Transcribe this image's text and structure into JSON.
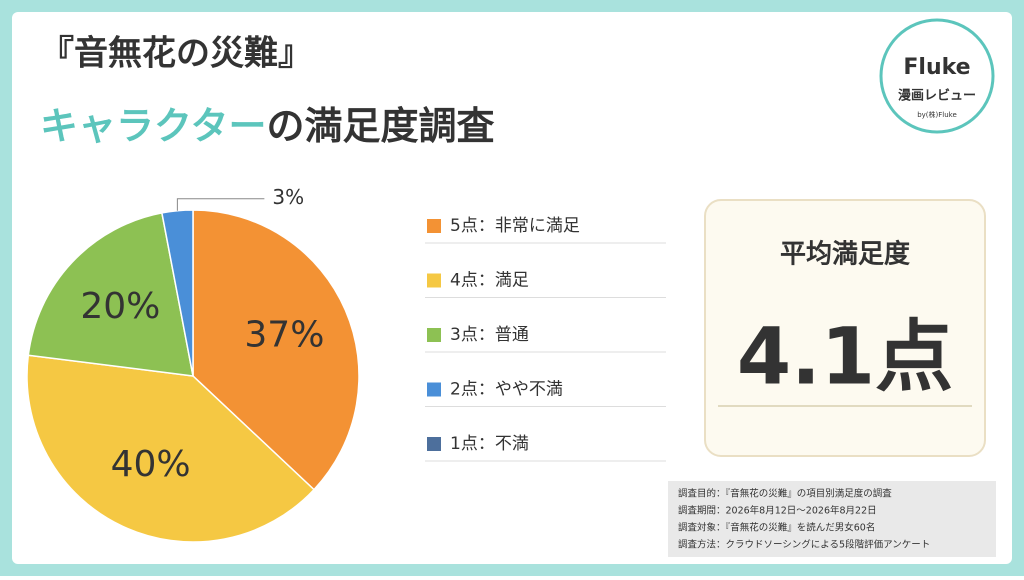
{
  "chart_data": {
    "type": "pie",
    "title": "『音無花の災難』",
    "subtitle": [
      "キャラクター",
      "の満足度調査"
    ],
    "categories": [
      "5点：非常に満足",
      "4点：満足",
      "3点：普通",
      "2点：やや不満",
      "1点：不満"
    ],
    "values": [
      37,
      40,
      20,
      3,
      0
    ],
    "value_labels": [
      "37%",
      "40%",
      "20%",
      "3%",
      null
    ],
    "colors": [
      "#f39234",
      "#f5c843",
      "#8dc153",
      "#4a8fd8",
      "#4d6f9c"
    ],
    "summary": {
      "label": "平均満足度",
      "value_text": "4.1点"
    },
    "logo": {
      "name": "Fluke",
      "tagline": "漫画レビュー",
      "by": "by(株)Fluke"
    },
    "notes": [
      "調査目的：『音無花の災難』の項目別満足度の調査",
      "調査期間：2026年8月12日～2026年8月22日",
      "調査対象：『音無花の災難』を読んだ男女60名",
      "調査方法：クラウドソーシングによる5段階評価アンケート"
    ]
  }
}
